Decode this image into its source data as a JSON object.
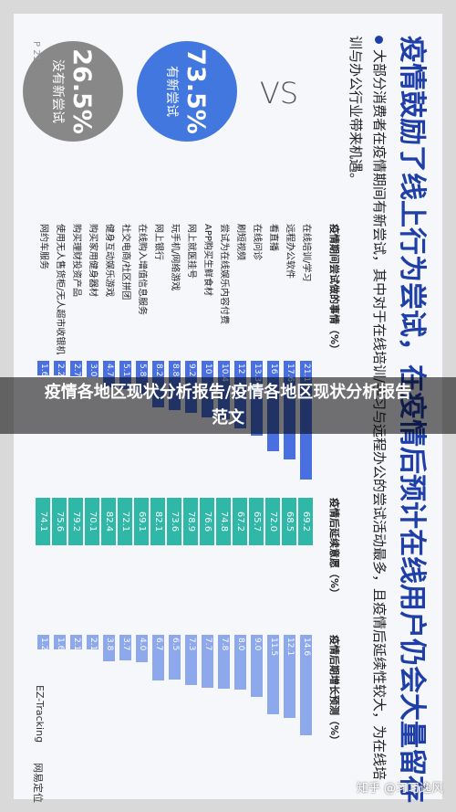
{
  "slide": {
    "title": "疫情鼓励了线上行为尝试，在疫情后预计在线用户仍会大量留存",
    "desc": "大部分消费者在疫情期间有新尝试，其中对于在线培训/学习与远程办公的尝试活动最多，且疫情后延续性较大，为在线培训与办公行业带来机遇。",
    "tried_pct": "73.5%",
    "tried_label": "有新尝试",
    "vs": "VS",
    "not_tried_pct": "26.5%",
    "not_tried_label": "没有新尝试",
    "page": "P 21",
    "col_tried": "疫情期间尝试做的事情（%）",
    "col_continue": "疫情后延续意愿（%）",
    "col_growth": "疫情后期增长预测（%）"
  },
  "rows": [
    {
      "cat": "在线培训/学习",
      "tried": "21.1",
      "tried_v": 21.1,
      "cont": "69.2",
      "growth": "14.6",
      "growth_v": 14.6
    },
    {
      "cat": "远程办公软件",
      "tried": "17.6",
      "tried_v": 17.6,
      "cont": "68.5",
      "growth": "12.1",
      "growth_v": 12.1
    },
    {
      "cat": "看直播",
      "tried": "16",
      "tried_v": 16,
      "cont": "72.0",
      "growth": "11.5",
      "growth_v": 11.5
    },
    {
      "cat": "在线问诊",
      "tried": "13.3",
      "tried_v": 13.3,
      "cont": "65.7",
      "growth": "9.0",
      "growth_v": 9.0
    },
    {
      "cat": "刷短视频",
      "tried": "12",
      "tried_v": 12,
      "cont": "67.2",
      "growth": "8.0",
      "growth_v": 8.0
    },
    {
      "cat": "尝试为在线娱乐内容付费",
      "tried": "10.4",
      "tried_v": 10.4,
      "cont": "74.8",
      "growth": "7.8",
      "growth_v": 7.8
    },
    {
      "cat": "APP购买生鲜食材",
      "tried": "10",
      "tried_v": 10,
      "cont": "76.6",
      "growth": "7.7",
      "growth_v": 7.7
    },
    {
      "cat": "网上就医挂号",
      "tried": "9.2",
      "tried_v": 9.2,
      "cont": "78.9",
      "growth": "7.3",
      "growth_v": 7.3
    },
    {
      "cat": "玩手机/网络游戏",
      "tried": "8.8",
      "tried_v": 8.8,
      "cont": "73.6",
      "growth": "6.5",
      "growth_v": 6.5
    },
    {
      "cat": "网上银行",
      "tried": "8.2",
      "tried_v": 8.2,
      "cont": "82.1",
      "growth": "6.7",
      "growth_v": 6.7
    },
    {
      "cat": "在线购入增值信息服务",
      "tried": "5.8",
      "tried_v": 5.8,
      "cont": "69.1",
      "growth": "4.0",
      "growth_v": 4.0
    },
    {
      "cat": "社交电商/社区拼团",
      "tried": "5.1",
      "tried_v": 5.1,
      "cont": "72.1",
      "growth": "3.7",
      "growth_v": 3.7
    },
    {
      "cat": "健身互动娱乐游戏",
      "tried": "4.7",
      "tried_v": 4.7,
      "cont": "82.4",
      "growth": "3.8",
      "growth_v": 3.8
    },
    {
      "cat": "购买家用健身器材",
      "tried": "3.0",
      "tried_v": 3.0,
      "cont": "70.1",
      "growth": "2.1",
      "growth_v": 2.1
    },
    {
      "cat": "购买理财投资产品",
      "tried": "2.7",
      "tried_v": 2.7,
      "cont": "79.2",
      "growth": "2.1",
      "growth_v": 2.1
    },
    {
      "cat": "使用无人售货柜/无人超市收银机",
      "tried": "2.2",
      "tried_v": 2.2,
      "cont": "75.6",
      "growth": "1.6",
      "growth_v": 1.6
    },
    {
      "cat": "网约车服务",
      "tried": "1.6",
      "tried_v": 1.6,
      "cont": "74.1",
      "growth": "1.2",
      "growth_v": 1.2
    }
  ],
  "logos": {
    "ez": "EZ-Tracking",
    "company": "网易定位"
  },
  "banner": "疫情各地区现状分析报告/疫情各地区现状分析报告范文",
  "watermark": "知乎 @习习逸风",
  "colors": {
    "title": "#1f3fa8",
    "bar": "#4a6fe0",
    "continue": "#2fb7a7",
    "growth": "#8ea8ec"
  }
}
